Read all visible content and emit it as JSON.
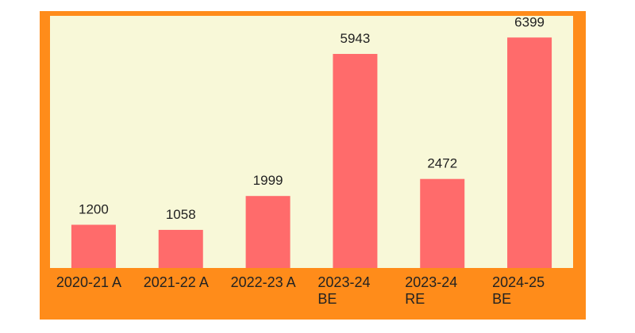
{
  "chart_data": {
    "type": "bar",
    "categories": [
      "2020-21 A",
      "2021-22 A",
      "2022-23 A",
      "2023-24 BE",
      "2023-24 RE",
      "2024-25 BE"
    ],
    "values": [
      1200,
      1058,
      1999,
      5943,
      2472,
      6399
    ],
    "color": "#ff6b6b",
    "ylim": [
      0,
      7000
    ]
  }
}
